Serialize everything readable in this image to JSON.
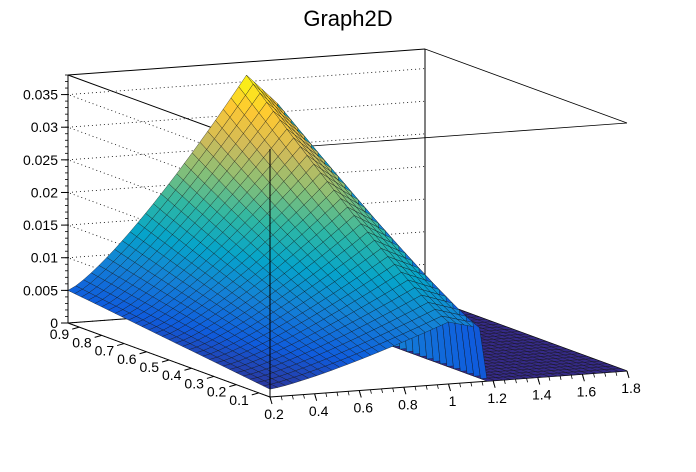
{
  "chart_data": {
    "type": "surface",
    "title": "Graph2D",
    "xlabel": "",
    "ylabel": "",
    "zlabel": "",
    "xlim": [
      0.2,
      1.8
    ],
    "ylim": [
      0.05,
      0.95
    ],
    "zlim": [
      0,
      0.038
    ],
    "x_ticks": [
      "0.2",
      "0.4",
      "0.6",
      "0.8",
      "1",
      "1.2",
      "1.4",
      "1.6",
      "1.8"
    ],
    "x_tick_values": [
      0.2,
      0.4,
      0.6,
      0.8,
      1.0,
      1.2,
      1.4,
      1.6,
      1.8
    ],
    "y_ticks": [
      "0.1",
      "0.2",
      "0.3",
      "0.4",
      "0.5",
      "0.6",
      "0.7",
      "0.8",
      "0.9"
    ],
    "y_tick_values": [
      0.1,
      0.2,
      0.3,
      0.4,
      0.5,
      0.6,
      0.7,
      0.8,
      0.9
    ],
    "z_ticks": [
      "0",
      "0.005",
      "0.01",
      "0.015",
      "0.02",
      "0.025",
      "0.03",
      "0.035"
    ],
    "z_tick_values": [
      0,
      0.005,
      0.01,
      0.015,
      0.02,
      0.025,
      0.03,
      0.035
    ],
    "grid": true,
    "colormap": [
      "#352a87",
      "#0f5cdd",
      "#1481d6",
      "#06a4ca",
      "#2eb7a4",
      "#87bf77",
      "#d1bb59",
      "#fec832",
      "#f9fb0e"
    ],
    "surface_description": "z rises from ~0.005 at x=0.2 toward a ridge peaking ~0.036 near x=1.0, y=0.95; for x>1.15 the surface drops to ~0 (flat at 0 for 1.2<=x<=1.8).",
    "key_points": [
      {
        "x": 0.2,
        "y": 0.95,
        "z": 0.005
      },
      {
        "x": 0.2,
        "y": 0.05,
        "z": 0.002
      },
      {
        "x": 1.0,
        "y": 0.95,
        "z": 0.036
      },
      {
        "x": 1.0,
        "y": 0.05,
        "z": 0.01
      },
      {
        "x": 1.15,
        "y": 0.95,
        "z": 0.0
      },
      {
        "x": 1.8,
        "y": 0.05,
        "z": 0.0
      }
    ]
  }
}
